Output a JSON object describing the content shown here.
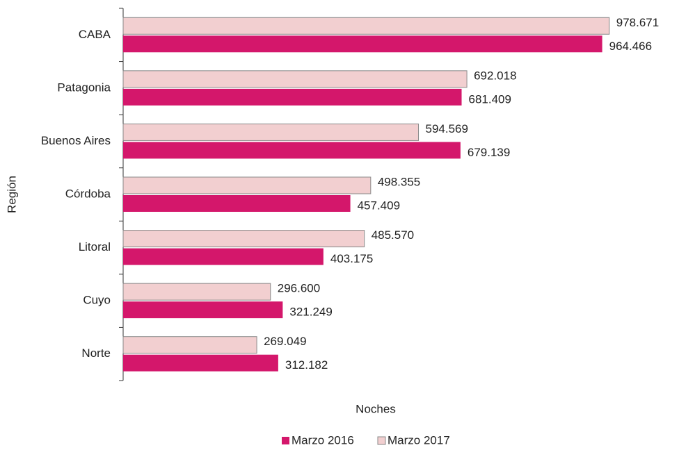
{
  "chart_data": {
    "type": "hbar",
    "categories": [
      "CABA",
      "Patagonia",
      "Buenos Aires",
      "Córdoba",
      "Litoral",
      "Cuyo",
      "Norte"
    ],
    "series": [
      {
        "name": "Marzo 2016",
        "color": "#d4176b",
        "values": [
          964466,
          681409,
          679139,
          457409,
          403175,
          321249,
          312182
        ],
        "value_labels": [
          "964.466",
          "681.409",
          "679.139",
          "457.409",
          "403.175",
          "321.249",
          "312.182"
        ]
      },
      {
        "name": "Marzo 2017",
        "color": "#f2cfd0",
        "values": [
          978671,
          692018,
          594569,
          498355,
          485570,
          296600,
          269049
        ],
        "value_labels": [
          "978.671",
          "692.018",
          "594.569",
          "498.355",
          "485.570",
          "296.600",
          "269.049"
        ]
      }
    ],
    "xlim": [
      0,
      1000000
    ],
    "xlabel": "Noches",
    "ylabel": "Región",
    "legend": "bottom"
  }
}
